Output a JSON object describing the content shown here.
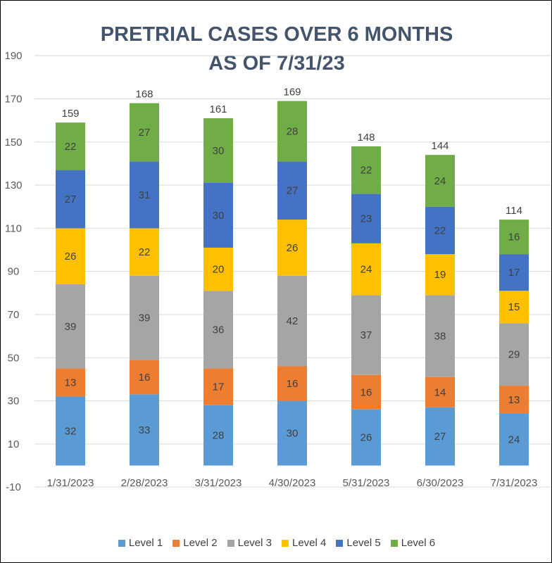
{
  "chart_data": {
    "type": "bar",
    "stacked": true,
    "title": "PRETRIAL CASES OVER 6 MONTHS\nAS OF 7/31/23",
    "title_lines": [
      "PRETRIAL CASES OVER 6 MONTHS",
      "AS OF 7/31/23"
    ],
    "xlabel": "",
    "ylabel": "",
    "ylim": [
      -10,
      190
    ],
    "yticks": [
      -10,
      10,
      30,
      50,
      70,
      90,
      110,
      130,
      150,
      170,
      190
    ],
    "grid": true,
    "legend_position": "bottom",
    "categories": [
      "1/31/2023",
      "2/28/2023",
      "3/31/2023",
      "4/30/2023",
      "5/31/2023",
      "6/30/2023",
      "7/31/2023"
    ],
    "series": [
      {
        "name": "Level 1",
        "color": "#5B9BD5",
        "values": [
          32,
          33,
          28,
          30,
          26,
          27,
          24
        ]
      },
      {
        "name": "Level 2",
        "color": "#ED7D31",
        "values": [
          13,
          16,
          17,
          16,
          16,
          14,
          13
        ]
      },
      {
        "name": "Level 3",
        "color": "#A5A5A5",
        "values": [
          39,
          39,
          36,
          42,
          37,
          38,
          29
        ]
      },
      {
        "name": "Level 4",
        "color": "#FFC000",
        "values": [
          26,
          22,
          20,
          26,
          24,
          19,
          15
        ]
      },
      {
        "name": "Level 5",
        "color": "#4472C4",
        "values": [
          27,
          31,
          30,
          27,
          23,
          22,
          17
        ]
      },
      {
        "name": "Level 6",
        "color": "#70AD47",
        "values": [
          22,
          27,
          30,
          28,
          22,
          24,
          16
        ]
      }
    ],
    "totals": [
      159,
      168,
      161,
      169,
      148,
      144,
      114
    ]
  }
}
